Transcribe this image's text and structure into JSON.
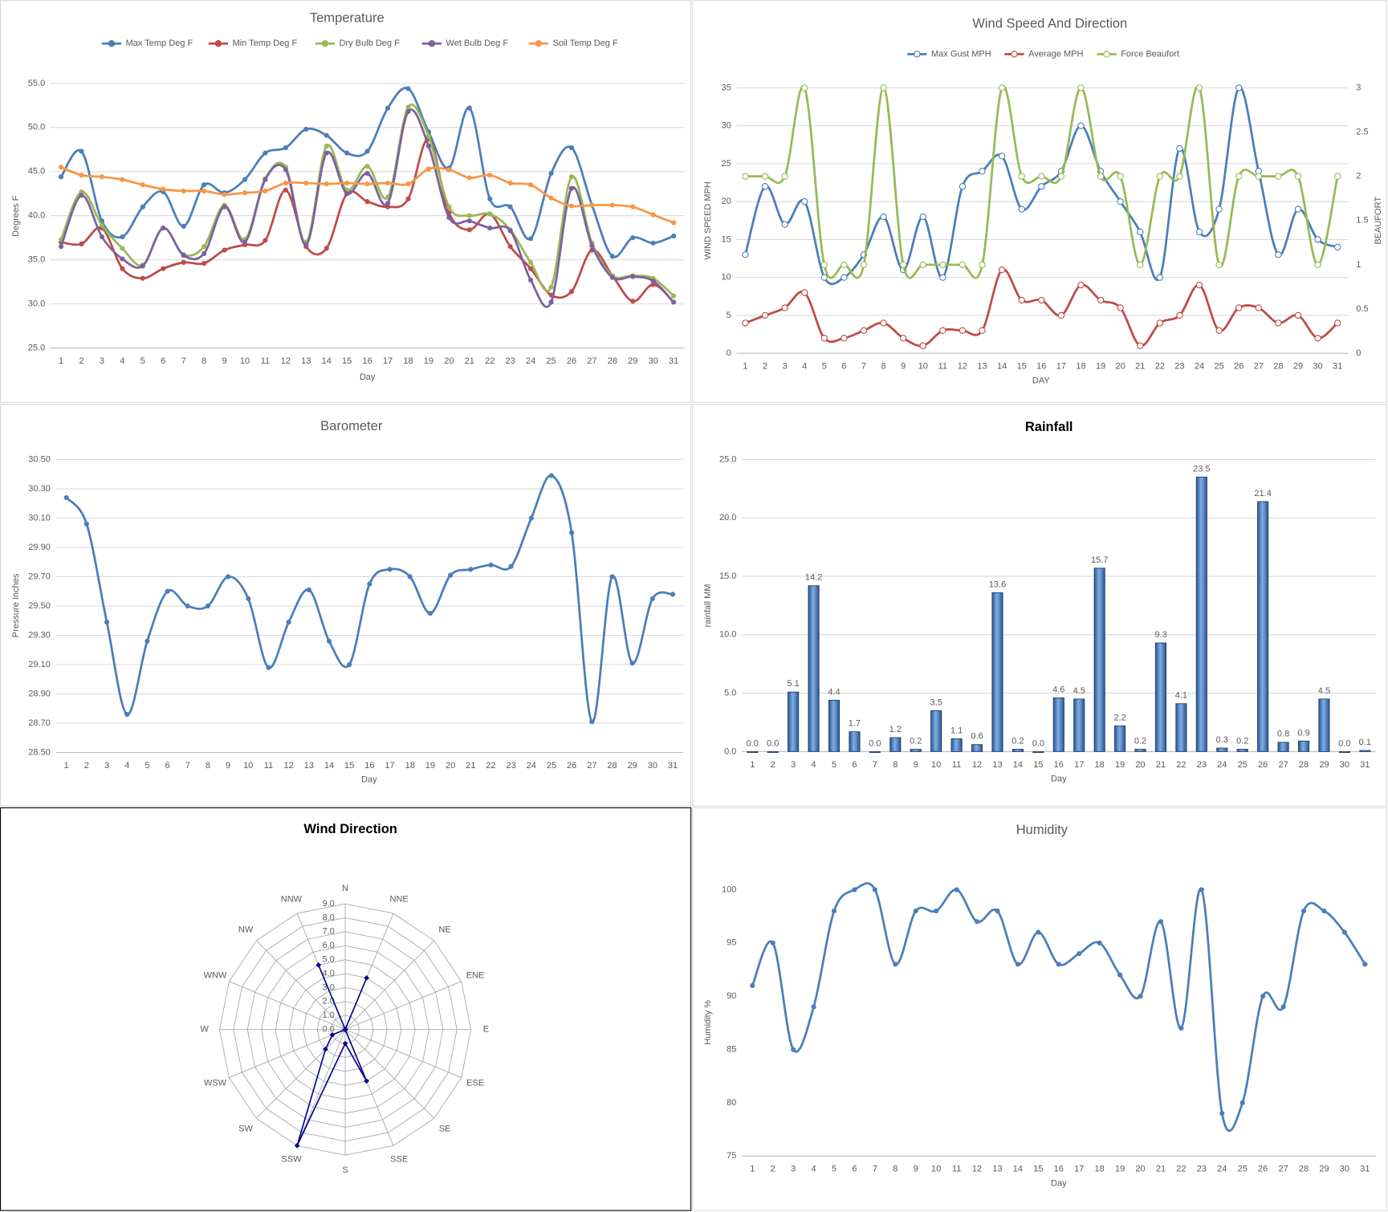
{
  "chart_data": [
    {
      "type": "line",
      "title": "Temperature",
      "x_label": "Day",
      "y_label": "Degrees F",
      "marker": "filled",
      "categories": [
        "1",
        "2",
        "3",
        "4",
        "5",
        "6",
        "7",
        "8",
        "9",
        "10",
        "11",
        "12",
        "13",
        "14",
        "15",
        "16",
        "17",
        "18",
        "19",
        "20",
        "21",
        "22",
        "23",
        "24",
        "25",
        "26",
        "27",
        "28",
        "29",
        "30",
        "31"
      ],
      "ylim": [
        25,
        55
      ],
      "yticks": [
        {
          "value": 25,
          "label": "25.0"
        },
        {
          "value": 30,
          "label": "30.0"
        },
        {
          "value": 35,
          "label": "35.0"
        },
        {
          "value": 40,
          "label": "40.0"
        },
        {
          "value": 45,
          "label": "45.0"
        },
        {
          "value": 50,
          "label": "50.0"
        },
        {
          "value": 55,
          "label": "55.0"
        }
      ],
      "grid": true,
      "series": [
        {
          "name": "Max Temp Deg F",
          "color": "#4a7ebb",
          "values": [
            44.4,
            47.3,
            39.4,
            37.6,
            41,
            42.7,
            38.8,
            43.5,
            42.6,
            44.1,
            47.1,
            47.7,
            49.8,
            49.1,
            47.1,
            47.3,
            52.2,
            54.4,
            49.5,
            45.4,
            52.2,
            41.9,
            41.0,
            37.4,
            44.8,
            47.7,
            41.2,
            35.4,
            37.5,
            36.9,
            37.7
          ]
        },
        {
          "name": "Min Temp Deg F",
          "color": "#be4b48",
          "values": [
            37,
            36.8,
            38.6,
            34,
            32.9,
            34,
            34.7,
            34.6,
            36.1,
            36.7,
            37.2,
            42.9,
            36.5,
            36.3,
            42.5,
            41.6,
            41,
            41.9,
            48.7,
            40.3,
            38.4,
            40.2,
            36.5,
            34,
            31,
            31.4,
            36.1,
            33.2,
            30.3,
            32.2,
            30.2
          ]
        },
        {
          "name": "Dry Bulb Deg F",
          "color": "#98b954",
          "values": [
            37.3,
            42.7,
            38.9,
            36.3,
            34.4,
            38.6,
            35.6,
            36.5,
            41.2,
            37.3,
            44.2,
            45.5,
            37,
            47.9,
            42.9,
            45.6,
            42.1,
            52.3,
            49,
            41,
            40,
            40.2,
            38.4,
            34.7,
            31.9,
            44.4,
            36.9,
            33.2,
            33.2,
            32.9,
            30.9
          ]
        },
        {
          "name": "Wet Bulb Deg F",
          "color": "#7d60a0",
          "values": [
            36.5,
            42.3,
            37.6,
            35.1,
            34.3,
            38.6,
            35.5,
            35.7,
            41,
            37,
            44.1,
            45.2,
            36.7,
            47.1,
            42.5,
            44.8,
            41.4,
            51.8,
            47.9,
            39.8,
            39.4,
            38.6,
            38.3,
            32.7,
            30.2,
            43.1,
            36.6,
            33.0,
            33.1,
            32.6,
            30.2
          ]
        },
        {
          "name": "Soil Temp Deg F",
          "color": "#f79646",
          "values": [
            45.5,
            44.6,
            44.4,
            44.1,
            43.5,
            43,
            42.8,
            42.8,
            42.4,
            42.6,
            42.8,
            43.7,
            43.7,
            43.6,
            43.7,
            43.6,
            43.7,
            43.6,
            45.3,
            45.2,
            44.3,
            44.6,
            43.7,
            43.5,
            42,
            41.1,
            41.2,
            41.2,
            41,
            40.1,
            39.2
          ]
        }
      ]
    },
    {
      "type": "line",
      "title": "Wind Speed And Direction",
      "x_label": "DAY",
      "y_label": "WIND SPEED MPH",
      "y2_label": "BEAUFORT",
      "marker": "open",
      "categories": [
        "1",
        "2",
        "3",
        "4",
        "5",
        "6",
        "7",
        "8",
        "9",
        "10",
        "11",
        "12",
        "13",
        "14",
        "15",
        "16",
        "17",
        "18",
        "19",
        "20",
        "21",
        "22",
        "23",
        "24",
        "25",
        "26",
        "27",
        "28",
        "29",
        "30",
        "31"
      ],
      "ylim": [
        0,
        35
      ],
      "yticks": [
        0,
        5,
        10,
        15,
        20,
        25,
        30,
        35
      ],
      "y2lim": [
        0,
        3
      ],
      "y2ticks": [
        0,
        0.5,
        1,
        1.5,
        2,
        2.5,
        3
      ],
      "grid": true,
      "series": [
        {
          "name": "Max Gust MPH",
          "color": "#4a7ebb",
          "values": [
            13,
            22,
            17,
            20,
            10,
            10,
            13,
            18,
            11,
            18,
            10,
            22,
            24,
            26,
            19,
            22,
            24,
            30,
            24,
            20,
            16,
            10,
            27,
            16,
            19,
            35,
            24,
            13,
            19,
            15,
            14
          ]
        },
        {
          "name": "Average MPH",
          "color": "#be4b48",
          "values": [
            4,
            5,
            6,
            8,
            2,
            2,
            3,
            4,
            2,
            1,
            3,
            3,
            3,
            11,
            7,
            7,
            5,
            9,
            7,
            6,
            1,
            4,
            5,
            9,
            3,
            6,
            6,
            4,
            5,
            2,
            4
          ]
        },
        {
          "name": "Force Beaufort",
          "color": "#98b954",
          "axis": "y2",
          "values": [
            2,
            2,
            2,
            3,
            1,
            1,
            1,
            3,
            1,
            1,
            1,
            1,
            1,
            3,
            2,
            2,
            2,
            3,
            2,
            2,
            1,
            2,
            2,
            3,
            1,
            2,
            2,
            2,
            2,
            1,
            2
          ]
        }
      ]
    },
    {
      "type": "line",
      "title": "Barometer",
      "x_label": "Day",
      "y_label": "Pressure Inches",
      "marker": "filled",
      "color": "#4a7ebb",
      "categories": [
        "1",
        "2",
        "3",
        "4",
        "5",
        "6",
        "7",
        "8",
        "9",
        "10",
        "11",
        "12",
        "13",
        "14",
        "15",
        "16",
        "17",
        "18",
        "19",
        "20",
        "21",
        "22",
        "23",
        "24",
        "25",
        "26",
        "27",
        "28",
        "29",
        "30",
        "31"
      ],
      "ylim": [
        28.5,
        30.5
      ],
      "yticks": [
        {
          "value": 28.5,
          "label": "28.50"
        },
        {
          "value": 28.7,
          "label": "28.70"
        },
        {
          "value": 28.9,
          "label": "28.90"
        },
        {
          "value": 29.1,
          "label": "29.10"
        },
        {
          "value": 29.3,
          "label": "29.30"
        },
        {
          "value": 29.5,
          "label": "29.50"
        },
        {
          "value": 29.7,
          "label": "29.70"
        },
        {
          "value": 29.9,
          "label": "29.90"
        },
        {
          "value": 30.1,
          "label": "30.10"
        },
        {
          "value": 30.3,
          "label": "30.30"
        },
        {
          "value": 30.5,
          "label": "30.50"
        }
      ],
      "grid": true,
      "values": [
        30.24,
        30.06,
        29.39,
        28.76,
        29.26,
        29.6,
        29.5,
        29.5,
        29.7,
        29.55,
        29.08,
        29.39,
        29.61,
        29.26,
        29.1,
        29.65,
        29.75,
        29.7,
        29.45,
        29.71,
        29.75,
        29.78,
        29.77,
        30.1,
        30.39,
        30.0,
        28.71,
        29.7,
        29.11,
        29.55,
        29.58
      ]
    },
    {
      "type": "bar",
      "title": "Rainfall",
      "x_label": "Day",
      "y_label": "rainfall MM",
      "color": "#4a7ebb",
      "categories": [
        "1",
        "2",
        "3",
        "4",
        "5",
        "6",
        "7",
        "8",
        "9",
        "10",
        "11",
        "12",
        "13",
        "14",
        "15",
        "16",
        "17",
        "18",
        "19",
        "20",
        "21",
        "22",
        "23",
        "24",
        "25",
        "26",
        "27",
        "28",
        "29",
        "30",
        "31"
      ],
      "ylim": [
        0,
        25
      ],
      "yticks": [
        {
          "value": 0,
          "label": "0.0"
        },
        {
          "value": 5,
          "label": "5.0"
        },
        {
          "value": 10,
          "label": "10.0"
        },
        {
          "value": 15,
          "label": "15.0"
        },
        {
          "value": 20,
          "label": "20.0"
        },
        {
          "value": 25,
          "label": "25.0"
        }
      ],
      "grid": true,
      "values": [
        0,
        0,
        5.1,
        14.2,
        4.4,
        1.7,
        0,
        1.2,
        0.2,
        3.5,
        1.1,
        0.6,
        13.6,
        0.2,
        0,
        4.6,
        4.5,
        15.7,
        2.2,
        0.2,
        9.3,
        4.1,
        23.5,
        0.3,
        0.2,
        21.4,
        0.8,
        0.9,
        4.5,
        0,
        0.1
      ],
      "value_labels": [
        "0.0",
        "0.0",
        "5.1",
        "14.2",
        "4.4",
        "1.7",
        "0.0",
        "1.2",
        "0.2",
        "3.5",
        "1.1",
        "0.6",
        "13.6",
        "0.2",
        "0.0",
        "4.6",
        "4.5",
        "15.7",
        "2.2",
        "0.2",
        "9.3",
        "4.1",
        "23.5",
        "0.3",
        "0.2",
        "21.4",
        "0.8",
        "0.9",
        "4.5",
        "0.0",
        "0.1"
      ]
    },
    {
      "type": "radar",
      "title": "Wind Direction",
      "color": "#00008b",
      "categories": [
        "N",
        "NNE",
        "NE",
        "ENE",
        "E",
        "ESE",
        "SE",
        "SSE",
        "S",
        "SSW",
        "SW",
        "WSW",
        "W",
        "WNW",
        "NW",
        "NNW"
      ],
      "values": [
        0,
        4,
        0,
        0,
        0,
        0,
        0,
        4,
        1,
        9,
        2,
        1,
        0,
        0,
        0,
        5
      ],
      "rlim": [
        0,
        9
      ],
      "rticks": [
        {
          "value": 0,
          "label": "0.0"
        },
        {
          "value": 1,
          "label": "1.0"
        },
        {
          "value": 2,
          "label": "2.0"
        },
        {
          "value": 3,
          "label": "3.0"
        },
        {
          "value": 4,
          "label": "4.0"
        },
        {
          "value": 5,
          "label": "5.0"
        },
        {
          "value": 6,
          "label": "6.0"
        },
        {
          "value": 7,
          "label": "7.0"
        },
        {
          "value": 8,
          "label": "8.0"
        },
        {
          "value": 9,
          "label": "9.0"
        }
      ]
    },
    {
      "type": "line",
      "title": "Humidity",
      "x_label": "Day",
      "y_label": "Humidity %",
      "marker": "filled",
      "color": "#4a7ebb",
      "categories": [
        "1",
        "2",
        "3",
        "4",
        "5",
        "6",
        "7",
        "8",
        "9",
        "10",
        "11",
        "12",
        "13",
        "14",
        "15",
        "16",
        "17",
        "18",
        "19",
        "20",
        "21",
        "22",
        "23",
        "24",
        "25",
        "26",
        "27",
        "28",
        "29",
        "30",
        "31"
      ],
      "ylim": [
        75,
        100
      ],
      "yticks": [
        75,
        80,
        85,
        90,
        95,
        100
      ],
      "grid": false,
      "values": [
        91,
        95,
        85,
        89,
        98,
        100,
        100,
        93,
        98,
        98,
        100,
        97,
        98,
        93,
        96,
        93,
        94,
        95,
        92,
        90,
        97,
        87,
        100,
        79,
        80,
        90,
        89,
        98,
        98,
        96,
        93
      ]
    }
  ]
}
